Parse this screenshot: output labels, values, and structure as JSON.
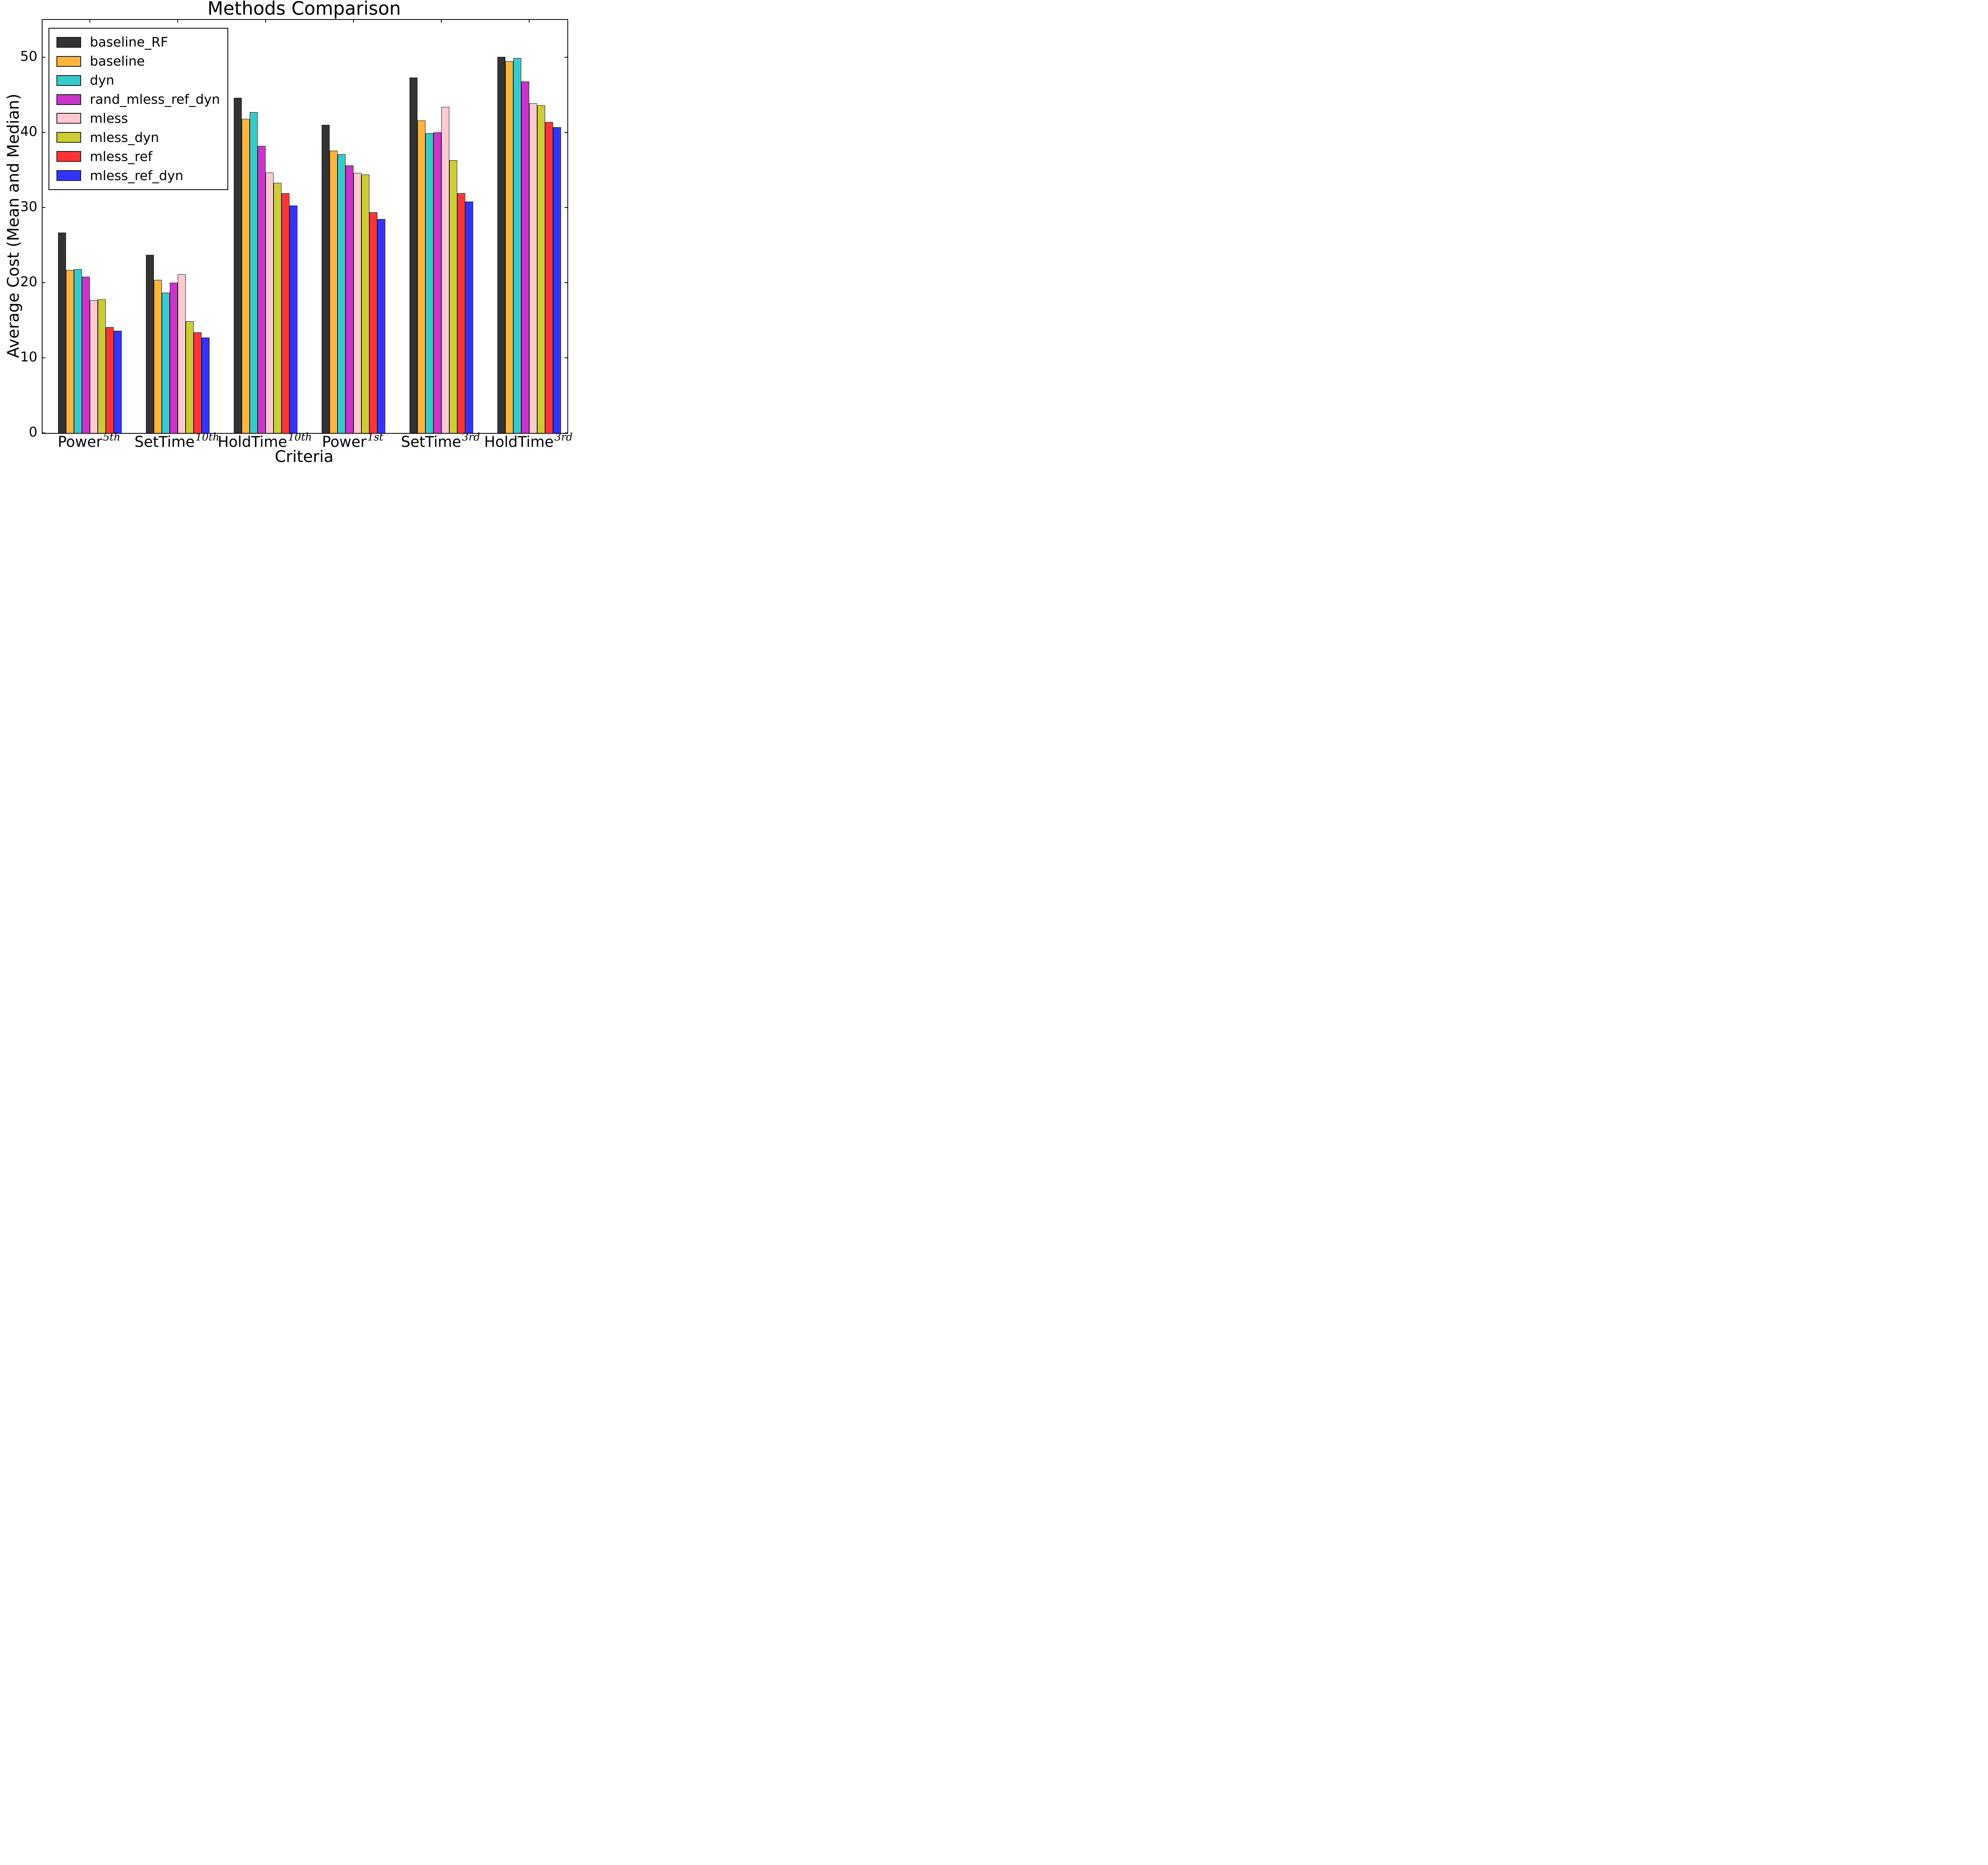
{
  "chart_data": {
    "type": "bar",
    "title": "Methods Comparison",
    "xlabel": "Criteria",
    "ylabel": "Average Cost (Mean and Median)",
    "ylim": [
      0,
      55
    ],
    "yticks": [
      0,
      10,
      20,
      30,
      40,
      50
    ],
    "grid": false,
    "legend_position": "upper left",
    "categories": [
      {
        "label": "Power",
        "sup": "5th"
      },
      {
        "label": "SetTime",
        "sup": "10th"
      },
      {
        "label": "HoldTime",
        "sup": "10th"
      },
      {
        "label": "Power",
        "sup": "1st"
      },
      {
        "label": "SetTime",
        "sup": "3rd"
      },
      {
        "label": "HoldTime",
        "sup": "3rd"
      }
    ],
    "series": [
      {
        "name": "baseline_RF",
        "color": "#333333",
        "values": [
          26.7,
          23.7,
          44.6,
          41.0,
          47.3,
          50.1
        ]
      },
      {
        "name": "baseline",
        "color": "#FFB43A",
        "values": [
          21.7,
          20.4,
          41.8,
          37.6,
          41.6,
          49.5
        ]
      },
      {
        "name": "dyn",
        "color": "#33CCCC",
        "values": [
          21.8,
          18.7,
          42.7,
          37.1,
          39.9,
          49.9
        ]
      },
      {
        "name": "rand_mless_ref_dyn",
        "color": "#CC33CC",
        "values": [
          20.8,
          20.0,
          38.2,
          35.6,
          40.0,
          46.8
        ]
      },
      {
        "name": "mless",
        "color": "#FFC9D2",
        "values": [
          17.7,
          21.1,
          34.7,
          34.6,
          43.4,
          43.9
        ]
      },
      {
        "name": "mless_dyn",
        "color": "#CCCC33",
        "values": [
          17.8,
          14.9,
          33.3,
          34.4,
          36.3,
          43.6
        ]
      },
      {
        "name": "mless_ref",
        "color": "#FF3333",
        "values": [
          14.1,
          13.4,
          31.9,
          29.4,
          31.9,
          41.4
        ]
      },
      {
        "name": "mless_ref_dyn",
        "color": "#3333FF",
        "values": [
          13.6,
          12.7,
          30.3,
          28.5,
          30.8,
          40.7
        ]
      }
    ]
  }
}
